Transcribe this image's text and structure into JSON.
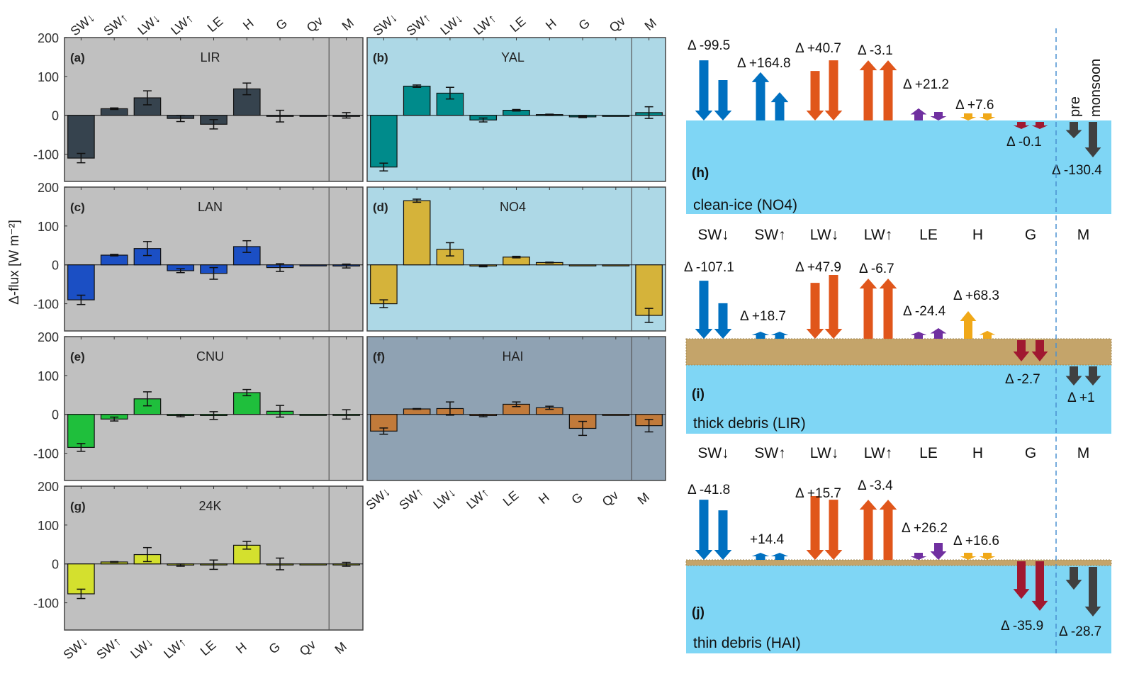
{
  "ylabel": "Δ-flux [W m⁻²]",
  "categories": [
    "SW↓",
    "SW↑",
    "LW↓",
    "LW↑",
    "LE",
    "H",
    "G",
    "Qv",
    "M"
  ],
  "yticks": [
    200,
    100,
    0,
    -100
  ],
  "chart_data": [
    {
      "type": "bar",
      "panel": "(a)",
      "title": "LIR",
      "background": "#c0c0c0",
      "color": "#36434e",
      "values": [
        -110,
        17,
        45,
        -8,
        -23,
        68,
        -2,
        -1,
        0
      ],
      "errors": [
        12,
        2,
        18,
        8,
        12,
        15,
        15,
        0,
        7
      ],
      "ylim": [
        -170,
        200
      ]
    },
    {
      "type": "bar",
      "panel": "(b)",
      "title": "YAL",
      "background": "#add8e6",
      "color": "#008b8b",
      "values": [
        -133,
        75,
        57,
        -12,
        13,
        2,
        -4,
        -1,
        7
      ],
      "errors": [
        10,
        3,
        15,
        5,
        2,
        1,
        2,
        0,
        15
      ],
      "ylim": [
        -170,
        200
      ]
    },
    {
      "type": "bar",
      "panel": "(c)",
      "title": "LAN",
      "background": "#c0c0c0",
      "color": "#1b4fc4",
      "values": [
        -90,
        25,
        42,
        -15,
        -22,
        47,
        -7,
        0,
        -3
      ],
      "errors": [
        12,
        2,
        18,
        5,
        15,
        15,
        10,
        0,
        5
      ],
      "ylim": [
        -170,
        200
      ]
    },
    {
      "type": "bar",
      "panel": "(d)",
      "title": "NO4",
      "background": "#add8e6",
      "color": "#d5b33a",
      "values": [
        -100,
        165,
        40,
        -3,
        20,
        6,
        0,
        0,
        -130
      ],
      "errors": [
        10,
        4,
        17,
        2,
        2,
        1,
        0,
        0,
        18
      ],
      "ylim": [
        -170,
        200
      ]
    },
    {
      "type": "bar",
      "panel": "(e)",
      "title": "CNU",
      "background": "#c0c0c0",
      "color": "#1fbf3c",
      "values": [
        -85,
        -12,
        40,
        -3,
        -3,
        56,
        8,
        0,
        0
      ],
      "errors": [
        10,
        5,
        18,
        3,
        10,
        8,
        15,
        0,
        12
      ],
      "ylim": [
        -170,
        200
      ]
    },
    {
      "type": "bar",
      "panel": "(f)",
      "title": "HAI",
      "background": "#8fa2b3",
      "color": "#c17a3a",
      "values": [
        -43,
        14,
        15,
        -3,
        26,
        17,
        -36,
        0,
        -29
      ],
      "errors": [
        8,
        1,
        17,
        3,
        6,
        4,
        18,
        0,
        16
      ],
      "ylim": [
        -170,
        200
      ]
    },
    {
      "type": "bar",
      "panel": "(g)",
      "title": "24K",
      "background": "#c0c0c0",
      "color": "#d4e02e",
      "values": [
        -77,
        5,
        24,
        -3,
        -2,
        48,
        0,
        0,
        -1
      ],
      "errors": [
        12,
        1,
        18,
        3,
        12,
        10,
        15,
        0,
        5
      ],
      "ylim": [
        -170,
        200
      ]
    }
  ],
  "schematic": {
    "flux_labels": [
      "SW↓",
      "SW↑",
      "LW↓",
      "LW↑",
      "LE",
      "H",
      "G",
      "M"
    ],
    "phase_labels": [
      "pre",
      "monsoon"
    ],
    "colors": {
      "SW": "#0070c0",
      "LW": "#e0561b",
      "LE": "#7030a0",
      "H": "#f0a818",
      "G": "#a01830",
      "M": "#404040",
      "ice": "#7fd6f5",
      "debris": "#c4a46a"
    },
    "panels": [
      {
        "panel": "(h)",
        "name": "clean-ice (NO4)",
        "surface": "clean-ice",
        "deltas": [
          "Δ -99.5",
          "Δ +164.8",
          "Δ +40.7",
          "Δ -3.1",
          "Δ +21.2",
          "Δ +7.6",
          "Δ -0.1",
          "Δ -130.4"
        ],
        "fluxes_pre_monsoon": [
          [
            -283,
            -190
          ],
          [
            227,
            133
          ],
          [
            -233,
            -283
          ],
          [
            283,
            283
          ],
          [
            57,
            -40
          ],
          [
            -10,
            -10
          ],
          [
            -15,
            -15
          ],
          [
            -77,
            -167
          ]
        ]
      },
      {
        "panel": "(i)",
        "name": "thick debris (LIR)",
        "surface": "thick-debris",
        "deltas": [
          "Δ -107.1",
          "Δ +18.7",
          "Δ +47.9",
          "Δ -6.7",
          "Δ -24.4",
          "Δ +68.3",
          "Δ -2.7",
          "Δ +1"
        ],
        "fluxes_pre_monsoon": [
          [
            -273,
            -167
          ],
          [
            33,
            23
          ],
          [
            -263,
            -300
          ],
          [
            283,
            283
          ],
          [
            33,
            50
          ],
          [
            130,
            37
          ],
          [
            -100,
            -100
          ],
          [
            -90,
            -90
          ]
        ]
      },
      {
        "panel": "(j)",
        "name": "thin debris (HAI)",
        "surface": "thin-debris",
        "deltas": [
          "Δ -41.8",
          "+14.4",
          "Δ +15.7",
          "Δ -3.4",
          "Δ +26.2",
          "Δ +16.6",
          "Δ -35.9",
          "Δ -28.7"
        ],
        "fluxes_pre_monsoon": [
          [
            -283,
            -233
          ],
          [
            27,
            23
          ],
          [
            -300,
            -283
          ],
          [
            283,
            283
          ],
          [
            -27,
            -80
          ],
          [
            -13,
            -27
          ],
          [
            -177,
            -233
          ],
          [
            -107,
            -233
          ]
        ]
      }
    ]
  }
}
